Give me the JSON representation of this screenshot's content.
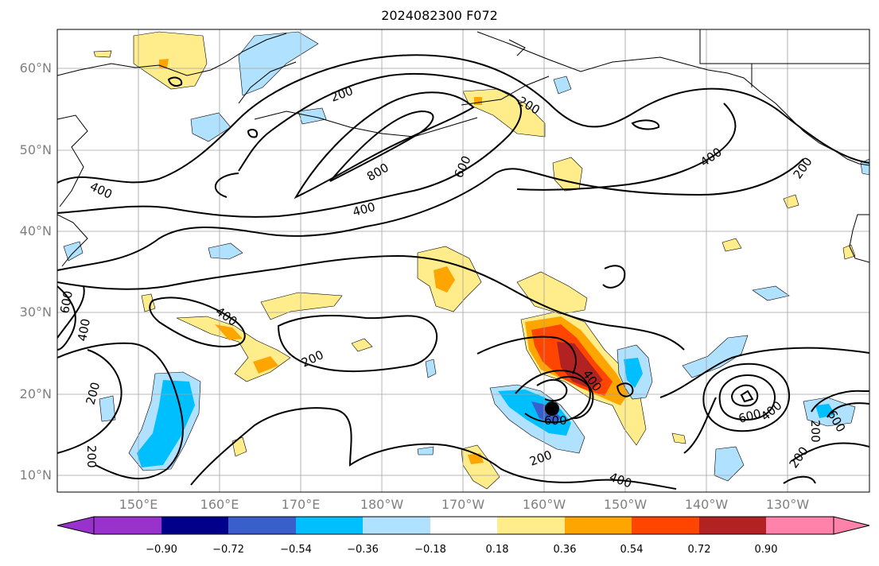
{
  "title": "2024082300 F072",
  "lat_labels": [
    "60°N",
    "50°N",
    "40°N",
    "30°N",
    "20°N",
    "10°N"
  ],
  "lon_labels": [
    "150°E",
    "160°E",
    "170°E",
    "180°W",
    "170°W",
    "160°W",
    "150°W",
    "140°W",
    "130°W"
  ],
  "colorbar": {
    "ticks": [
      "−0.90",
      "−0.72",
      "−0.54",
      "−0.36",
      "−0.18",
      "0.18",
      "0.36",
      "0.54",
      "0.72",
      "0.90"
    ],
    "colors": [
      "#9932cc",
      "#00008b",
      "#3a5fcd",
      "#00bfff",
      "#b0e2ff",
      "#ffffff",
      "#ffec8b",
      "#ffa500",
      "#ff4500",
      "#b22222",
      "#ff82ab"
    ]
  },
  "contour_labels": [
    "200",
    "200",
    "200",
    "400",
    "400",
    "400",
    "600",
    "800",
    "200",
    "400",
    "200",
    "400",
    "400",
    "600",
    "400",
    "600",
    "200",
    "200",
    "200",
    "400",
    "200",
    "600",
    "400",
    "400",
    "600",
    "200",
    "400"
  ],
  "colors": {
    "land_line": "#000000",
    "contour": "#000000",
    "grid": "#a0a0a0",
    "axis_tick_label": "#808080"
  }
}
